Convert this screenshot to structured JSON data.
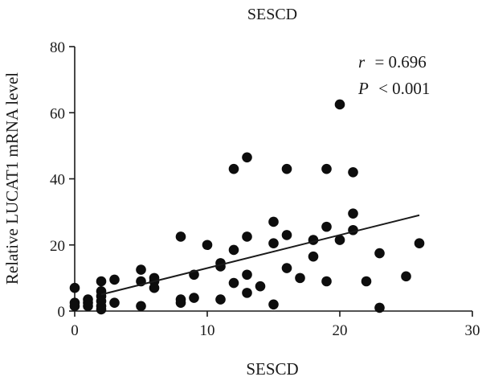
{
  "chart_data": {
    "type": "scatter",
    "title": "SESCD",
    "xlabel": "SESCD",
    "ylabel": "Relative LUCAT1 mRNA level",
    "xlim": [
      0,
      30
    ],
    "ylim": [
      0,
      80
    ],
    "xticks": [
      "0",
      "10",
      "20",
      "30"
    ],
    "yticks": [
      "0",
      "20",
      "40",
      "60",
      "80"
    ],
    "grid": false,
    "annotations": {
      "r_symbol": "r",
      "r_value": "= 0.696",
      "p_symbol": "P",
      "p_value": "< 0.001"
    },
    "fit_line": {
      "x": [
        2,
        26
      ],
      "y": [
        5.0,
        29.0
      ]
    },
    "points": [
      [
        0,
        7
      ],
      [
        0,
        2.5
      ],
      [
        0,
        1.5
      ],
      [
        1,
        3.5
      ],
      [
        1,
        2.5
      ],
      [
        1,
        1.5
      ],
      [
        2,
        9
      ],
      [
        2,
        6
      ],
      [
        2,
        4.5
      ],
      [
        2,
        3
      ],
      [
        2,
        1.5
      ],
      [
        2,
        0.5
      ],
      [
        3,
        9.5
      ],
      [
        3,
        2.5
      ],
      [
        5,
        12.5
      ],
      [
        5,
        9
      ],
      [
        5,
        1.5
      ],
      [
        6,
        10
      ],
      [
        6,
        9
      ],
      [
        6,
        7
      ],
      [
        8,
        22.5
      ],
      [
        8,
        3.5
      ],
      [
        8,
        2.5
      ],
      [
        9,
        11
      ],
      [
        9,
        4
      ],
      [
        10,
        20
      ],
      [
        11,
        14.5
      ],
      [
        11,
        13.5
      ],
      [
        11,
        3.5
      ],
      [
        12,
        43
      ],
      [
        12,
        18.5
      ],
      [
        12,
        8.5
      ],
      [
        13,
        46.5
      ],
      [
        13,
        22.5
      ],
      [
        13,
        11
      ],
      [
        13,
        5.5
      ],
      [
        14,
        7.5
      ],
      [
        15,
        27
      ],
      [
        15,
        20.5
      ],
      [
        15,
        2
      ],
      [
        16,
        43
      ],
      [
        16,
        23
      ],
      [
        16,
        13
      ],
      [
        17,
        10
      ],
      [
        18,
        21.5
      ],
      [
        18,
        16.5
      ],
      [
        19,
        43
      ],
      [
        19,
        25.5
      ],
      [
        19,
        9
      ],
      [
        20,
        62.5
      ],
      [
        20,
        21.5
      ],
      [
        21,
        42
      ],
      [
        21,
        29.5
      ],
      [
        21,
        24.5
      ],
      [
        22,
        9
      ],
      [
        23,
        17.5
      ],
      [
        23,
        1
      ],
      [
        25,
        10.5
      ],
      [
        26,
        20.5
      ]
    ]
  }
}
